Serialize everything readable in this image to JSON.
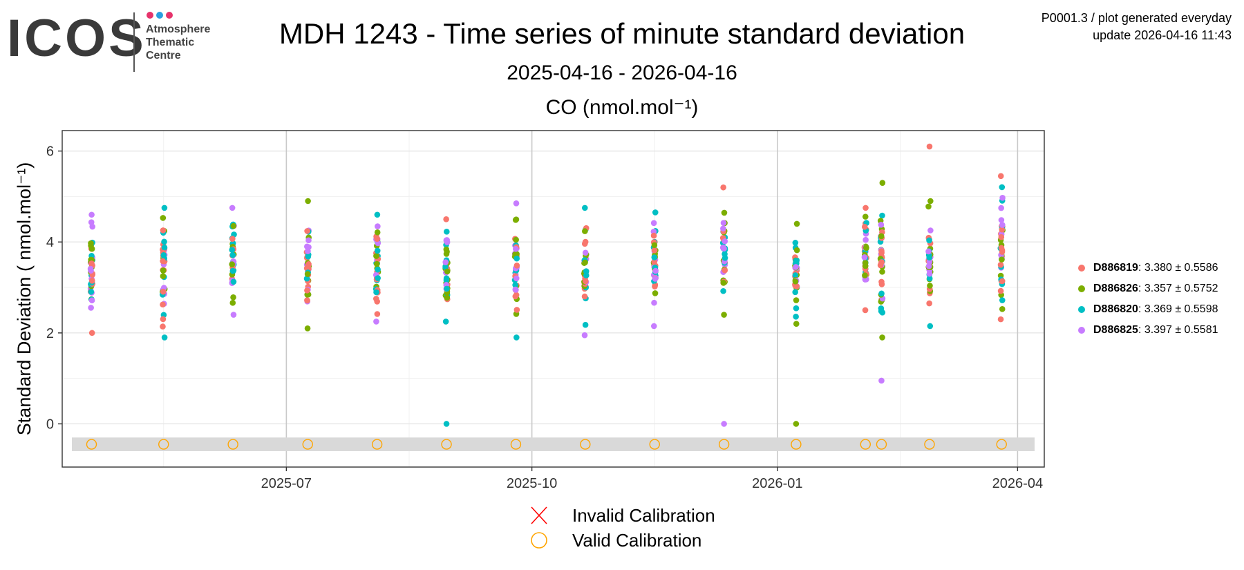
{
  "logo": {
    "word": "ICOS",
    "lines": [
      "Atmosphere",
      "Thematic",
      "Centre"
    ],
    "dot_colors": [
      "#e6336b",
      "#2a9fe0",
      "#e6336b"
    ]
  },
  "header": {
    "title": "MDH 1243 - Time series of minute standard deviation",
    "subtitle": "2025-04-16 - 2026-04-16",
    "plot_title": "CO (nmol.mol⁻¹)",
    "meta_line1": "P0001.3 / plot generated everyday",
    "meta_line2": "update  2026-04-16 11:43"
  },
  "legend": [
    {
      "id": "D886819",
      "stat": "3.380 ± 0.5586",
      "color": "#f8766d"
    },
    {
      "id": "D886826",
      "stat": "3.357 ± 0.5752",
      "color": "#7cae00"
    },
    {
      "id": "D886820",
      "stat": "3.369 ± 0.5598",
      "color": "#00bfc4"
    },
    {
      "id": "D886825",
      "stat": "3.397 ± 0.5581",
      "color": "#c77cff"
    }
  ],
  "bottom_legend": {
    "invalid_label": "Invalid Calibration",
    "valid_label": "Valid Calibration",
    "invalid_color": "#ff0000",
    "valid_color": "#ffa500"
  },
  "chart_data": {
    "type": "scatter",
    "ylabel": "Standard Deviation ( nmol.mol⁻¹)",
    "ylim": [
      -0.95,
      6.45
    ],
    "xlim": [
      "2025-04-08",
      "2026-04-11"
    ],
    "x_ticks": [
      "2025-07",
      "2025-10",
      "2026-01",
      "2026-04"
    ],
    "y_ticks": [
      0,
      2,
      4,
      6
    ],
    "grid": true,
    "legend_position": "right",
    "calibration_band": [
      -0.6,
      -0.3
    ],
    "calibration_marker_y": -0.45,
    "calibration_dates": [
      "2025-04-19",
      "2025-05-16",
      "2025-06-11",
      "2025-07-09",
      "2025-08-04",
      "2025-08-30",
      "2025-09-25",
      "2025-10-21",
      "2025-11-16",
      "2025-12-12",
      "2026-01-08",
      "2026-02-03",
      "2026-02-09",
      "2026-02-27",
      "2026-03-26"
    ],
    "clusters": [
      {
        "date": "2025-04-19",
        "min": 2.0,
        "max": 4.6
      },
      {
        "date": "2025-05-16",
        "min": 1.9,
        "max": 4.75
      },
      {
        "date": "2025-06-11",
        "min": 2.4,
        "max": 4.75
      },
      {
        "date": "2025-07-09",
        "min": 2.1,
        "max": 4.9
      },
      {
        "date": "2025-08-04",
        "min": 2.25,
        "max": 4.6
      },
      {
        "date": "2025-08-30",
        "min": 2.25,
        "max": 4.5
      },
      {
        "date": "2025-09-25",
        "min": 1.9,
        "max": 4.85
      },
      {
        "date": "2025-10-21",
        "min": 1.95,
        "max": 4.75
      },
      {
        "date": "2025-11-16",
        "min": 2.15,
        "max": 4.65
      },
      {
        "date": "2025-12-12",
        "min": 2.4,
        "max": 5.2
      },
      {
        "date": "2026-01-08",
        "min": 2.2,
        "max": 4.4
      },
      {
        "date": "2026-02-03",
        "min": 2.5,
        "max": 4.75
      },
      {
        "date": "2026-02-09",
        "min": 1.9,
        "max": 5.3
      },
      {
        "date": "2026-02-27",
        "min": 2.15,
        "max": 4.9
      },
      {
        "date": "2026-03-26",
        "min": 2.3,
        "max": 5.45
      }
    ],
    "outliers": [
      {
        "date": "2025-08-30",
        "y": 0.0,
        "series": "D886820"
      },
      {
        "date": "2025-12-12",
        "y": 0.0,
        "series": "D886825"
      },
      {
        "date": "2026-01-08",
        "y": 0.0,
        "series": "D886826"
      },
      {
        "date": "2026-02-09",
        "y": 0.95,
        "series": "D886825"
      },
      {
        "date": "2026-02-27",
        "y": 6.1,
        "series": "D886819"
      }
    ]
  }
}
